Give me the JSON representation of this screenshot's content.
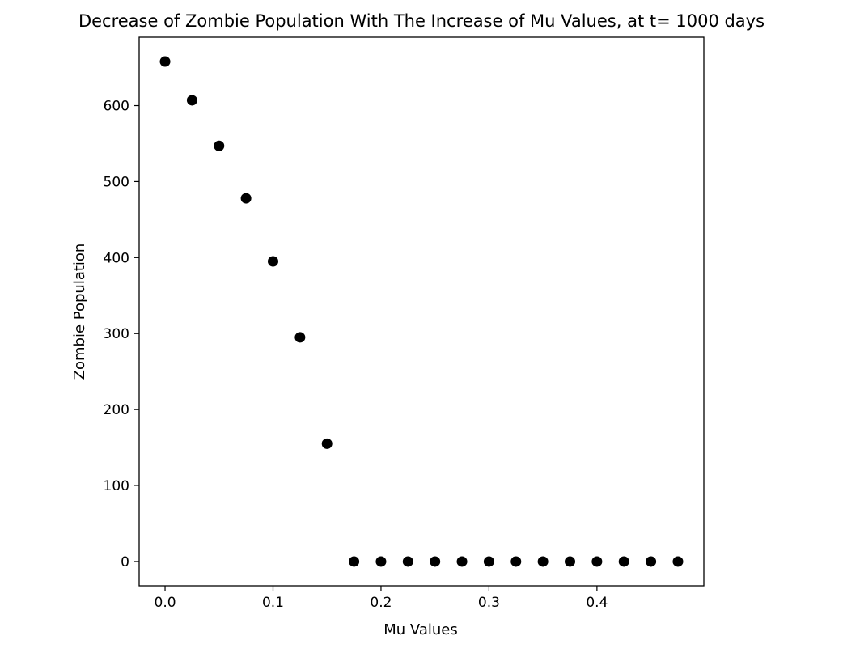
{
  "chart_data": {
    "type": "scatter",
    "title": "Decrease of Zombie Population With The Increase of Mu Values, at t= 1000 days",
    "xlabel": "Mu Values",
    "ylabel": "Zombie Population",
    "xlim": [
      -0.024,
      0.499
    ],
    "ylim": [
      -32,
      690
    ],
    "xticks": [
      {
        "value": 0.0,
        "label": "0.0"
      },
      {
        "value": 0.1,
        "label": "0.1"
      },
      {
        "value": 0.2,
        "label": "0.2"
      },
      {
        "value": 0.3,
        "label": "0.3"
      },
      {
        "value": 0.4,
        "label": "0.4"
      }
    ],
    "yticks": [
      {
        "value": 0,
        "label": "0"
      },
      {
        "value": 100,
        "label": "100"
      },
      {
        "value": 200,
        "label": "200"
      },
      {
        "value": 300,
        "label": "300"
      },
      {
        "value": 400,
        "label": "400"
      },
      {
        "value": 500,
        "label": "500"
      },
      {
        "value": 600,
        "label": "600"
      }
    ],
    "grid": false,
    "marker_color": "#000000",
    "points": [
      {
        "x": 0.0,
        "y": 658
      },
      {
        "x": 0.025,
        "y": 607
      },
      {
        "x": 0.05,
        "y": 547
      },
      {
        "x": 0.075,
        "y": 478
      },
      {
        "x": 0.1,
        "y": 395
      },
      {
        "x": 0.125,
        "y": 295
      },
      {
        "x": 0.15,
        "y": 155
      },
      {
        "x": 0.175,
        "y": 0
      },
      {
        "x": 0.2,
        "y": 0
      },
      {
        "x": 0.225,
        "y": 0
      },
      {
        "x": 0.25,
        "y": 0
      },
      {
        "x": 0.275,
        "y": 0
      },
      {
        "x": 0.3,
        "y": 0
      },
      {
        "x": 0.325,
        "y": 0
      },
      {
        "x": 0.35,
        "y": 0
      },
      {
        "x": 0.375,
        "y": 0
      },
      {
        "x": 0.4,
        "y": 0
      },
      {
        "x": 0.425,
        "y": 0
      },
      {
        "x": 0.45,
        "y": 0
      },
      {
        "x": 0.475,
        "y": 0
      }
    ]
  }
}
